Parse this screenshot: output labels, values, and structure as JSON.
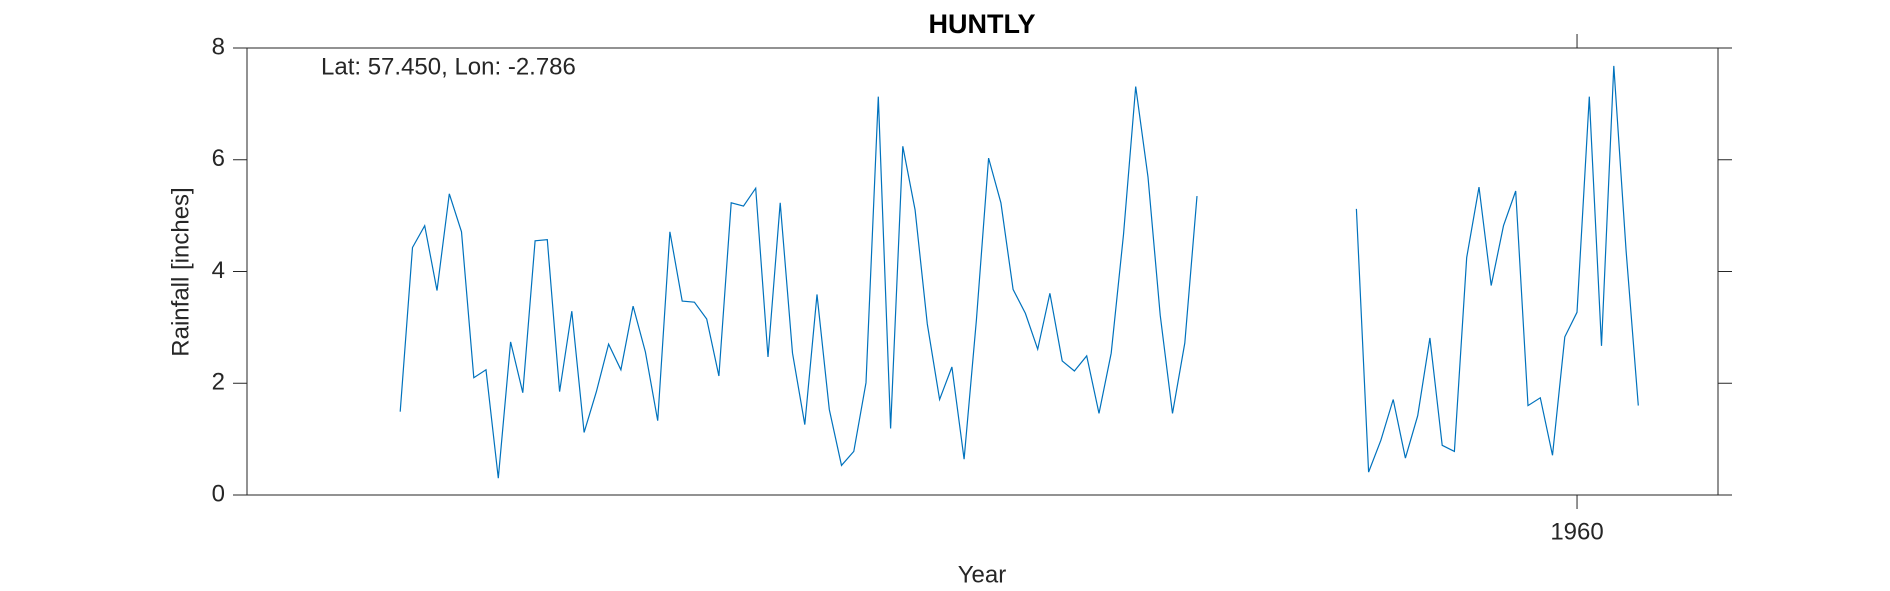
{
  "chart_data": {
    "type": "line",
    "title": "HUNTLY",
    "annotation": "Lat: 57.450, Lon: -2.786",
    "xlabel": "Year",
    "ylabel": "Rainfall [inches]",
    "color": "#0072bd",
    "x": [
      1864,
      1865,
      1866,
      1867,
      1868,
      1869,
      1870,
      1871,
      1872,
      1873,
      1874,
      1875,
      1876,
      1877,
      1878,
      1879,
      1880,
      1881,
      1882,
      1883,
      1884,
      1885,
      1886,
      1887,
      1888,
      1889,
      1890,
      1891,
      1892,
      1893,
      1894,
      1895,
      1896,
      1897,
      1898,
      1899,
      1900,
      1901,
      1902,
      1903,
      1904,
      1905,
      1906,
      1907,
      1908,
      1909,
      1910,
      1911,
      1912,
      1913,
      1914,
      1915,
      1916,
      1917,
      1918,
      1919,
      1920,
      1921,
      1922,
      1923,
      1924,
      1925,
      1926,
      1927,
      1928,
      1929,
      1930,
      1931,
      1932,
      1933,
      1934,
      1935,
      1936,
      1937,
      1938,
      1939,
      1940,
      1941,
      1942,
      1943,
      1944,
      1945,
      1946,
      1947,
      1948,
      1949,
      1950,
      1951,
      1952,
      1953,
      1954,
      1955,
      1956,
      1957,
      1958,
      1959,
      1960,
      1961,
      1962,
      1963,
      1964,
      1965
    ],
    "values": [
      1.49,
      4.43,
      4.82,
      3.66,
      5.39,
      4.71,
      2.1,
      2.24,
      0.3,
      2.74,
      1.83,
      4.55,
      4.57,
      1.85,
      3.29,
      1.12,
      1.85,
      2.7,
      2.24,
      3.38,
      2.56,
      1.33,
      4.71,
      3.47,
      3.45,
      3.15,
      2.13,
      5.23,
      5.17,
      5.49,
      2.47,
      5.23,
      2.54,
      1.26,
      3.59,
      1.53,
      0.53,
      0.78,
      2.01,
      7.13,
      1.19,
      6.24,
      5.1,
      3.06,
      1.71,
      2.29,
      0.64,
      3.13,
      6.03,
      5.23,
      3.68,
      3.25,
      2.61,
      3.61,
      2.4,
      2.22,
      2.49,
      1.46,
      2.54,
      4.66,
      7.31,
      5.69,
      3.22,
      1.46,
      2.72,
      5.35,
      null,
      null,
      null,
      null,
      null,
      null,
      null,
      null,
      null,
      null,
      null,
      null,
      5.12,
      0.41,
      0.98,
      1.71,
      0.66,
      1.42,
      2.81,
      0.89,
      0.78,
      4.25,
      5.51,
      3.75,
      4.82,
      5.44,
      1.6,
      1.74,
      0.71,
      2.83,
      3.27,
      7.13,
      2.67,
      7.68,
      4.37,
      1.6
    ],
    "xlim": [
      1851.5,
      1971.5
    ],
    "xticks": [
      1960
    ],
    "ylim": [
      0,
      8
    ],
    "yticks": [
      0,
      2,
      4,
      6,
      8
    ]
  }
}
